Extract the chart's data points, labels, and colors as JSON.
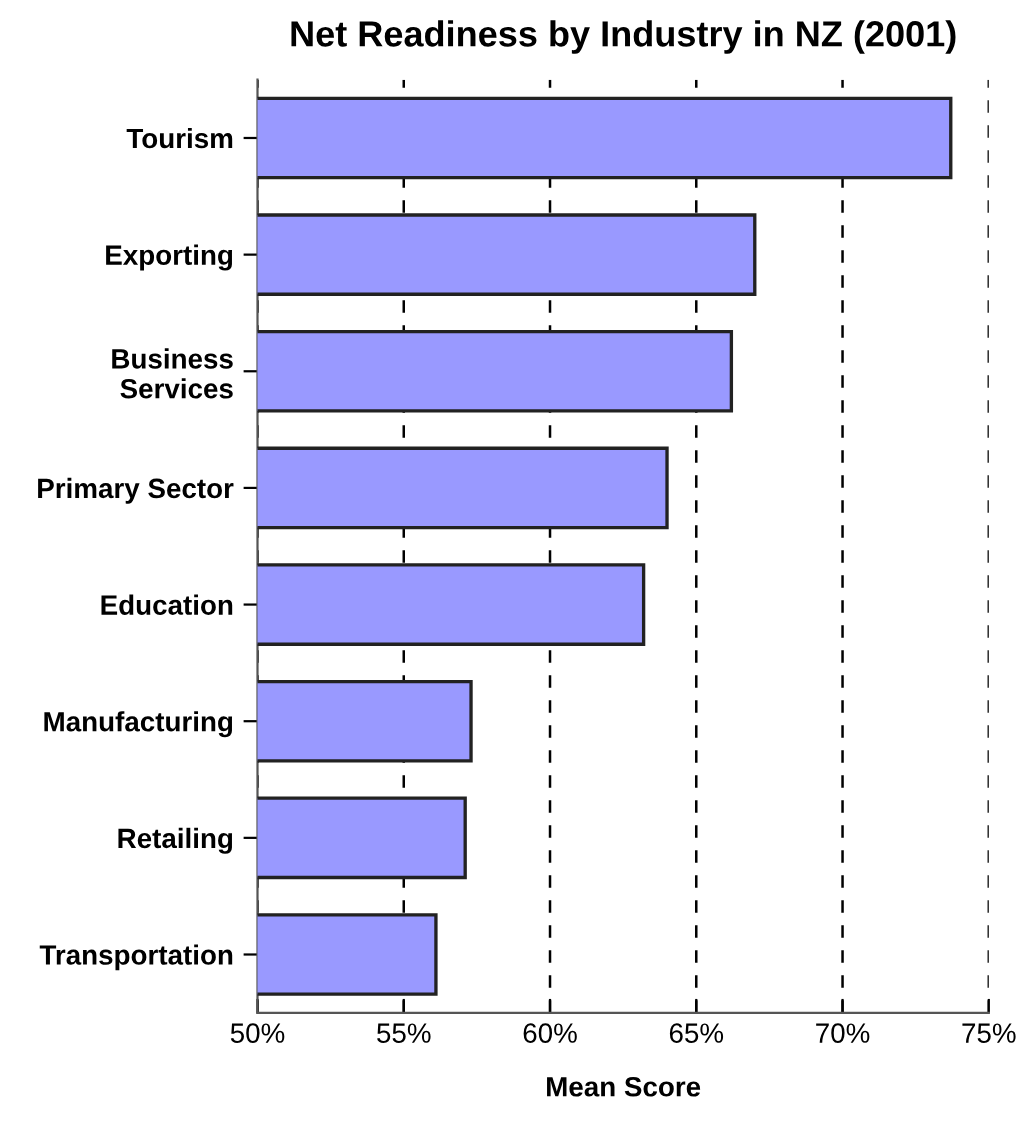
{
  "chart_data": {
    "type": "bar",
    "orientation": "horizontal",
    "title": "Net Readiness by Industry in NZ (2001)",
    "xlabel": "Mean Score",
    "categories": [
      "Tourism",
      "Exporting",
      "Business\nServices",
      "Primary Sector",
      "Education",
      "Manufacturing",
      "Retailing",
      "Transportation"
    ],
    "values": [
      73.7,
      67.0,
      66.2,
      64.0,
      63.2,
      57.3,
      57.1,
      56.1
    ],
    "color": "#9999ff",
    "xlim": [
      50,
      75
    ],
    "xticks": [
      {
        "value": 50,
        "label": "50%"
      },
      {
        "value": 55,
        "label": "55%"
      },
      {
        "value": 60,
        "label": "60%"
      },
      {
        "value": 65,
        "label": "65%"
      },
      {
        "value": 70,
        "label": "70%"
      },
      {
        "value": 75,
        "label": "75%"
      }
    ],
    "grid": "x",
    "line_style": "dashed",
    "legend": false
  }
}
